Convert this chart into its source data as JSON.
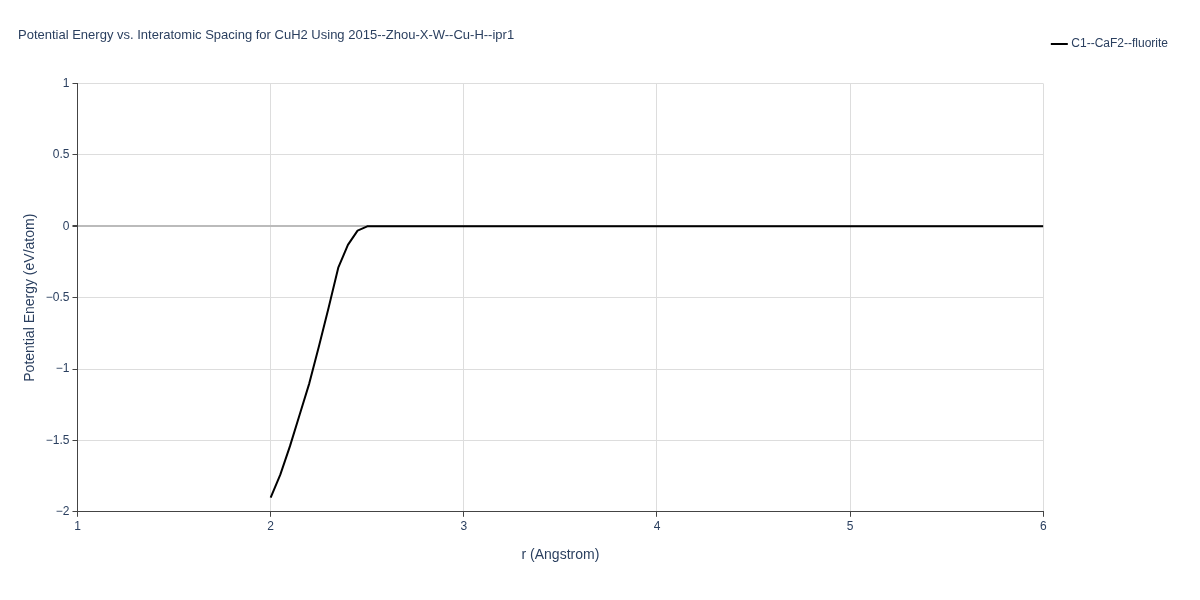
{
  "chart_data": {
    "type": "line",
    "title": "Potential Energy vs. Interatomic Spacing for CuH2 Using 2015--Zhou-X-W--Cu-H--ipr1",
    "xlabel": "r (Angstrom)",
    "ylabel": "Potential Energy (eV/atom)",
    "x": [
      2.0,
      2.05,
      2.1,
      2.15,
      2.2,
      2.25,
      2.3,
      2.35,
      2.4,
      2.45,
      2.5,
      3,
      4,
      5,
      6
    ],
    "series": [
      {
        "name": "C1--CaF2--fluorite",
        "color": "#000000",
        "values": [
          -1.9,
          -1.74,
          -1.54,
          -1.32,
          -1.1,
          -0.84,
          -0.57,
          -0.29,
          -0.13,
          -0.03,
          0,
          0,
          0,
          0,
          0
        ]
      }
    ],
    "xlim": [
      1,
      6
    ],
    "xticks": [
      1,
      2,
      3,
      4,
      5,
      6
    ],
    "ylim": [
      -2,
      1
    ],
    "yticks": [
      -2,
      -1.5,
      -1,
      -0.5,
      0,
      0.5,
      1
    ],
    "grid": true,
    "legend": "top right",
    "marker": "none",
    "line_style": "solid"
  }
}
